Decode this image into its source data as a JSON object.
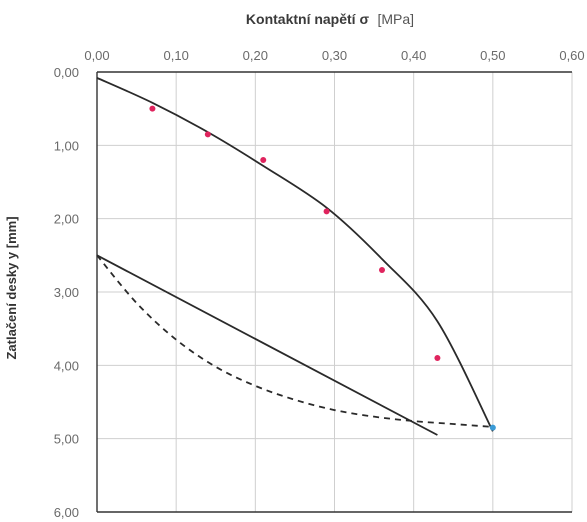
{
  "chart_data": {
    "type": "scatter",
    "title": "",
    "xlabel": {
      "bold": "Kontaktní napětí σ",
      "normal": "[MPa]"
    },
    "ylabel": "Zatlačení desky y [mm]",
    "xlim": [
      0,
      0.6
    ],
    "ylim": [
      0,
      6
    ],
    "y_inverted": true,
    "x_axis_position": "top",
    "grid": true,
    "x_ticks": [
      "0,00",
      "0,10",
      "0,20",
      "0,30",
      "0,40",
      "0,50",
      "0,60"
    ],
    "y_ticks": [
      "0,00",
      "1,00",
      "2,00",
      "3,00",
      "4,00",
      "5,00",
      "6,00"
    ],
    "series": [
      {
        "kind": "points",
        "color": "#e0245e",
        "x": [
          0.07,
          0.14,
          0.21,
          0.29,
          0.36,
          0.43
        ],
        "y": [
          0.5,
          0.85,
          1.2,
          1.9,
          2.7,
          3.9
        ]
      },
      {
        "kind": "points",
        "color": "#3b9bd6",
        "x": [
          0.5
        ],
        "y": [
          4.85
        ]
      },
      {
        "kind": "line",
        "style": "solid",
        "color": "#2a2a2a",
        "x": [
          0.0,
          0.07,
          0.14,
          0.21,
          0.29,
          0.36,
          0.43,
          0.5
        ],
        "y": [
          0.08,
          0.42,
          0.82,
          1.28,
          1.85,
          2.55,
          3.4,
          4.9
        ]
      },
      {
        "kind": "line",
        "style": "solid",
        "color": "#2a2a2a",
        "x": [
          0.0,
          0.43
        ],
        "y": [
          2.5,
          4.95
        ]
      },
      {
        "kind": "line",
        "style": "dashed",
        "color": "#2a2a2a",
        "x": [
          0.0,
          0.05,
          0.1,
          0.15,
          0.2,
          0.25,
          0.3,
          0.35,
          0.4,
          0.45,
          0.5
        ],
        "y": [
          2.5,
          3.15,
          3.65,
          4.02,
          4.28,
          4.47,
          4.61,
          4.7,
          4.76,
          4.8,
          4.84
        ]
      }
    ]
  }
}
